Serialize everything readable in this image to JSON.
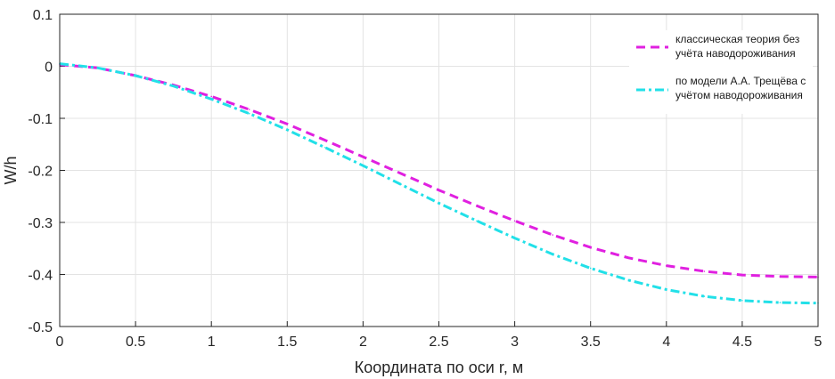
{
  "chart_data": {
    "type": "line",
    "xlabel": "Координата по оси r, м",
    "ylabel": "W/h",
    "xlim": [
      0,
      5
    ],
    "ylim": [
      -0.5,
      0.1
    ],
    "xticks": [
      "0",
      "0.5",
      "1",
      "1.5",
      "2",
      "2.5",
      "3",
      "3.5",
      "4",
      "4.5",
      "5"
    ],
    "yticks": [
      "0.1",
      "0",
      "-0.1",
      "-0.2",
      "-0.3",
      "-0.4",
      "-0.5"
    ],
    "grid": true,
    "legend_position": "top-right",
    "series": [
      {
        "name_line1": "классическая теория без",
        "name_line2": "учёта наводороживания",
        "color": "#e020e0",
        "dash": "dashed",
        "x": [
          0,
          0.25,
          0.5,
          0.75,
          1,
          1.25,
          1.5,
          1.75,
          2,
          2.25,
          2.5,
          2.75,
          3,
          3.25,
          3.5,
          3.75,
          4,
          4.25,
          4.5,
          4.75,
          5
        ],
        "y": [
          0.003,
          -0.003,
          -0.018,
          -0.036,
          -0.058,
          -0.083,
          -0.111,
          -0.142,
          -0.174,
          -0.206,
          -0.238,
          -0.268,
          -0.297,
          -0.324,
          -0.348,
          -0.368,
          -0.383,
          -0.394,
          -0.401,
          -0.404,
          -0.405
        ]
      },
      {
        "name_line1": "по модели А.А. Трещёва с",
        "name_line2": "учётом наводороживания",
        "color": "#22e0e8",
        "dash": "dashdot",
        "x": [
          0,
          0.25,
          0.5,
          0.75,
          1,
          1.25,
          1.5,
          1.75,
          2,
          2.25,
          2.5,
          2.75,
          3,
          3.25,
          3.5,
          3.75,
          4,
          4.25,
          4.5,
          4.75,
          5
        ],
        "y": [
          0.005,
          -0.003,
          -0.018,
          -0.038,
          -0.063,
          -0.091,
          -0.122,
          -0.156,
          -0.191,
          -0.227,
          -0.263,
          -0.297,
          -0.33,
          -0.361,
          -0.388,
          -0.411,
          -0.429,
          -0.442,
          -0.45,
          -0.454,
          -0.455
        ]
      }
    ]
  }
}
